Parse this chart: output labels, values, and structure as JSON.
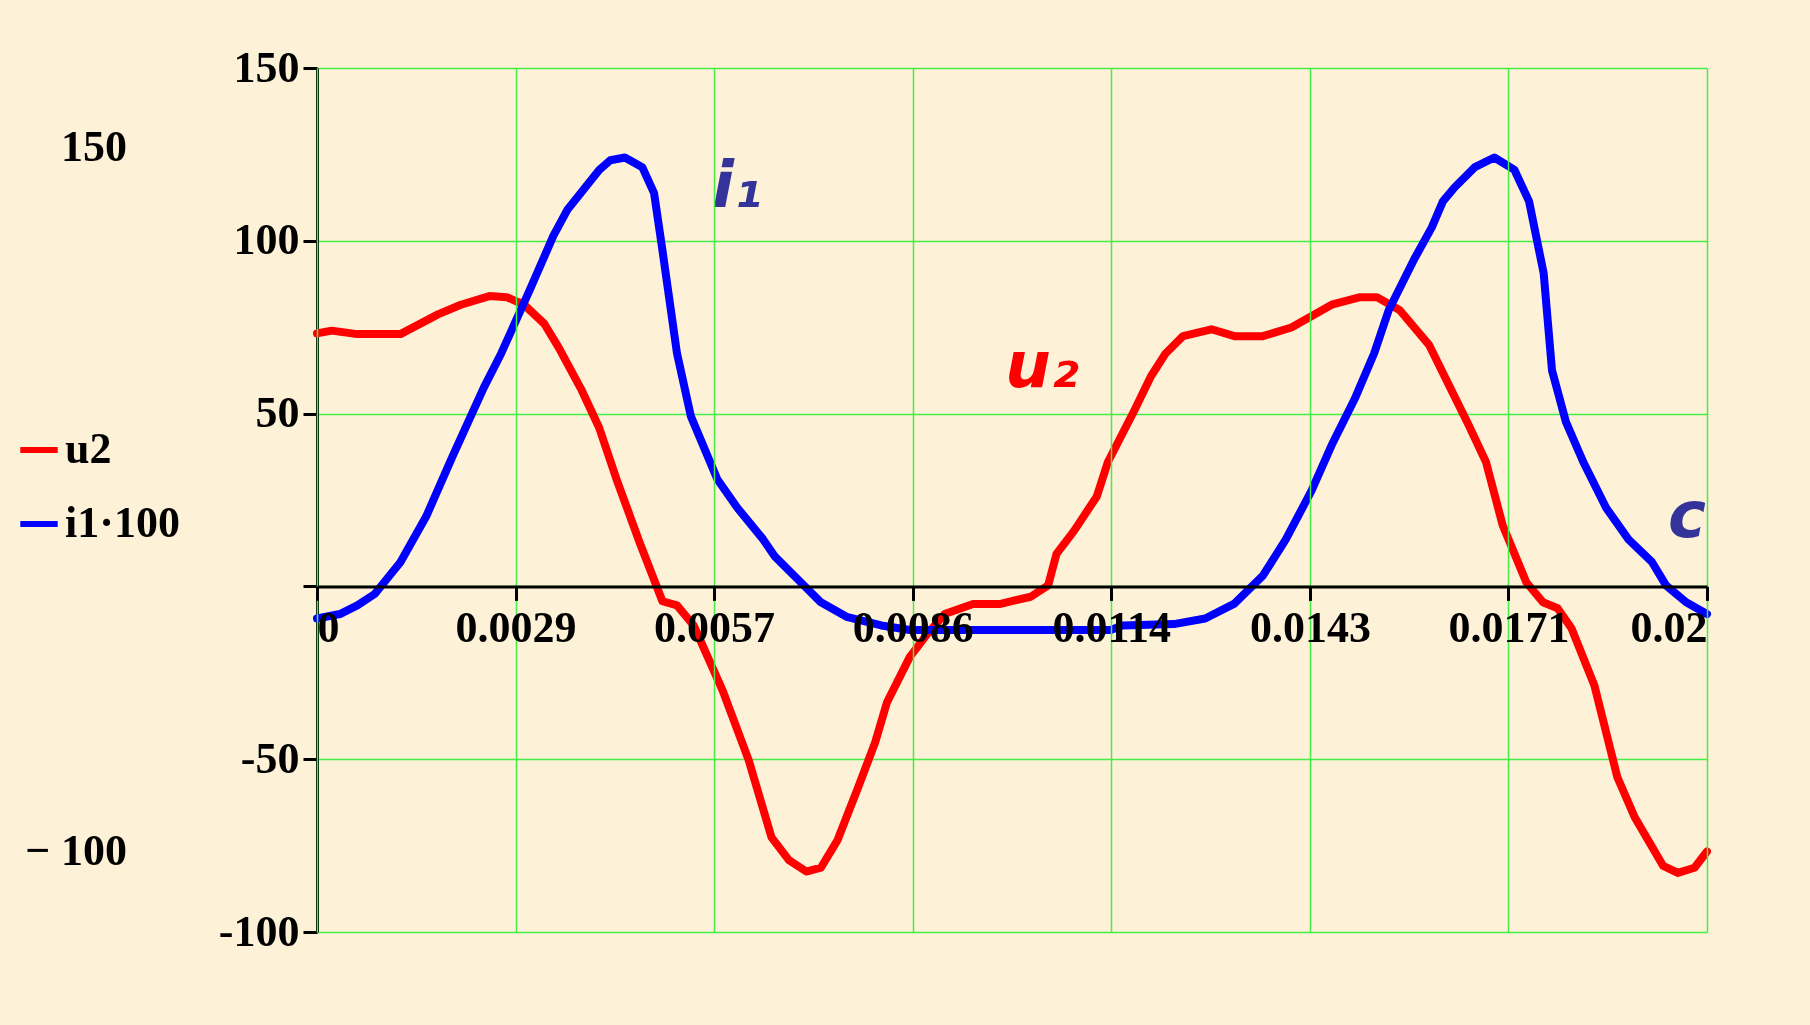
{
  "chart_data": {
    "type": "line",
    "xlim": [
      0,
      0.02
    ],
    "ylim": [
      -100,
      150
    ],
    "xticks": [
      0,
      {
        "value": 0.002857,
        "label": "0.0029"
      },
      {
        "value": 0.005714,
        "label": "0.0057"
      },
      {
        "value": 0.008571,
        "label": "0.0086"
      },
      {
        "value": 0.011429,
        "label": "0.0114"
      },
      {
        "value": 0.014286,
        "label": "0.0143"
      },
      {
        "value": 0.017143,
        "label": "0.0171"
      },
      0.02
    ],
    "yticks": [
      150,
      100,
      50,
      {
        "value": 0,
        "label": null
      },
      -50,
      -100
    ],
    "grid": true,
    "legend": "left",
    "line_style": "solid",
    "marker": "none",
    "annotations": [
      "150",
      "− 100",
      "i₁",
      "u₂",
      "c"
    ],
    "series": [
      {
        "name": "u2",
        "color": "#ff0000",
        "x": [
          0,
          0.00021,
          0.00058,
          0.0012,
          0.00174,
          0.00207,
          0.00248,
          0.00273,
          0.00298,
          0.00327,
          0.00348,
          0.00381,
          0.00406,
          0.00431,
          0.00464,
          0.00497,
          0.00518,
          0.00542,
          0.00584,
          0.00621,
          0.00654,
          0.00679,
          0.00704,
          0.00725,
          0.00749,
          0.00778,
          0.00803,
          0.0082,
          0.00853,
          0.00878,
          0.00903,
          0.00944,
          0.00982,
          0.01027,
          0.01052,
          0.01064,
          0.01089,
          0.01122,
          0.01138,
          0.01176,
          0.012,
          0.01221,
          0.01246,
          0.01287,
          0.0132,
          0.01361,
          0.01402,
          0.0146,
          0.01501,
          0.01525,
          0.01558,
          0.016,
          0.01657,
          0.01682,
          0.01706,
          0.0174,
          0.01764,
          0.01785,
          0.01805,
          0.01838,
          0.01871,
          0.01896,
          0.01937,
          0.01958,
          0.01982,
          0.02
        ],
        "values": [
          73.2,
          74,
          73,
          73,
          78.7,
          81.5,
          84,
          83.7,
          81.5,
          76,
          69,
          56.7,
          45.9,
          31,
          12.8,
          -4.3,
          -5.5,
          -11.3,
          -30.3,
          -50.2,
          -72.6,
          -79.2,
          -82.5,
          -81.4,
          -73.4,
          -58.5,
          -45.2,
          -33.6,
          -20.4,
          -13.8,
          -8,
          -5.1,
          -5.1,
          -3,
          0.3,
          9.4,
          16,
          26,
          36,
          50.9,
          60.8,
          67.4,
          72.4,
          74.4,
          72.4,
          72.4,
          74.9,
          81.5,
          83.7,
          83.7,
          79.9,
          69.9,
          46.7,
          36,
          17.7,
          1.2,
          -4.6,
          -6.3,
          -12.1,
          -28.7,
          -55.2,
          -66.8,
          -80.9,
          -82.9,
          -81.4,
          -76.7
        ]
      },
      {
        "name": "i1·100",
        "color": "#0000ff",
        "x": [
          0,
          0.00033,
          0.00058,
          0.00083,
          0.0012,
          0.00157,
          0.00195,
          0.0024,
          0.00265,
          0.00306,
          0.0034,
          0.0036,
          0.00406,
          0.00422,
          0.00443,
          0.00468,
          0.00485,
          0.00497,
          0.00518,
          0.00538,
          0.00576,
          0.00605,
          0.00642,
          0.00659,
          0.00696,
          0.00725,
          0.00762,
          0.00812,
          0.00853,
          0.01142,
          0.01159,
          0.01233,
          0.01278,
          0.0132,
          0.01361,
          0.01394,
          0.01431,
          0.0146,
          0.01493,
          0.01521,
          0.01542,
          0.01579,
          0.01604,
          0.0162,
          0.01637,
          0.01666,
          0.01694,
          0.01723,
          0.01744,
          0.01765,
          0.01777,
          0.01797,
          0.01822,
          0.01855,
          0.01887,
          0.01921,
          0.01941,
          0.0197,
          0.02
        ],
        "values": [
          -9.3,
          -8,
          -5.5,
          -2.2,
          7,
          20.2,
          37.6,
          57.5,
          67.4,
          85.7,
          101.4,
          108.9,
          120.5,
          123.3,
          124.1,
          121.3,
          113.8,
          97.3,
          67.4,
          49.2,
          31,
          22.7,
          13.6,
          8.6,
          1.2,
          -4.6,
          -8.8,
          -11.3,
          -12.6,
          -12.6,
          -11.3,
          -10.9,
          -9.3,
          -5,
          3.1,
          13.6,
          27.7,
          40.9,
          54.2,
          67.4,
          79.9,
          94.8,
          103.9,
          111.4,
          115.5,
          121.3,
          124.1,
          120.5,
          111.4,
          90.6,
          62.5,
          47.6,
          36,
          22.7,
          13.6,
          7,
          0.3,
          -4.6,
          -8
        ]
      }
    ]
  }
}
